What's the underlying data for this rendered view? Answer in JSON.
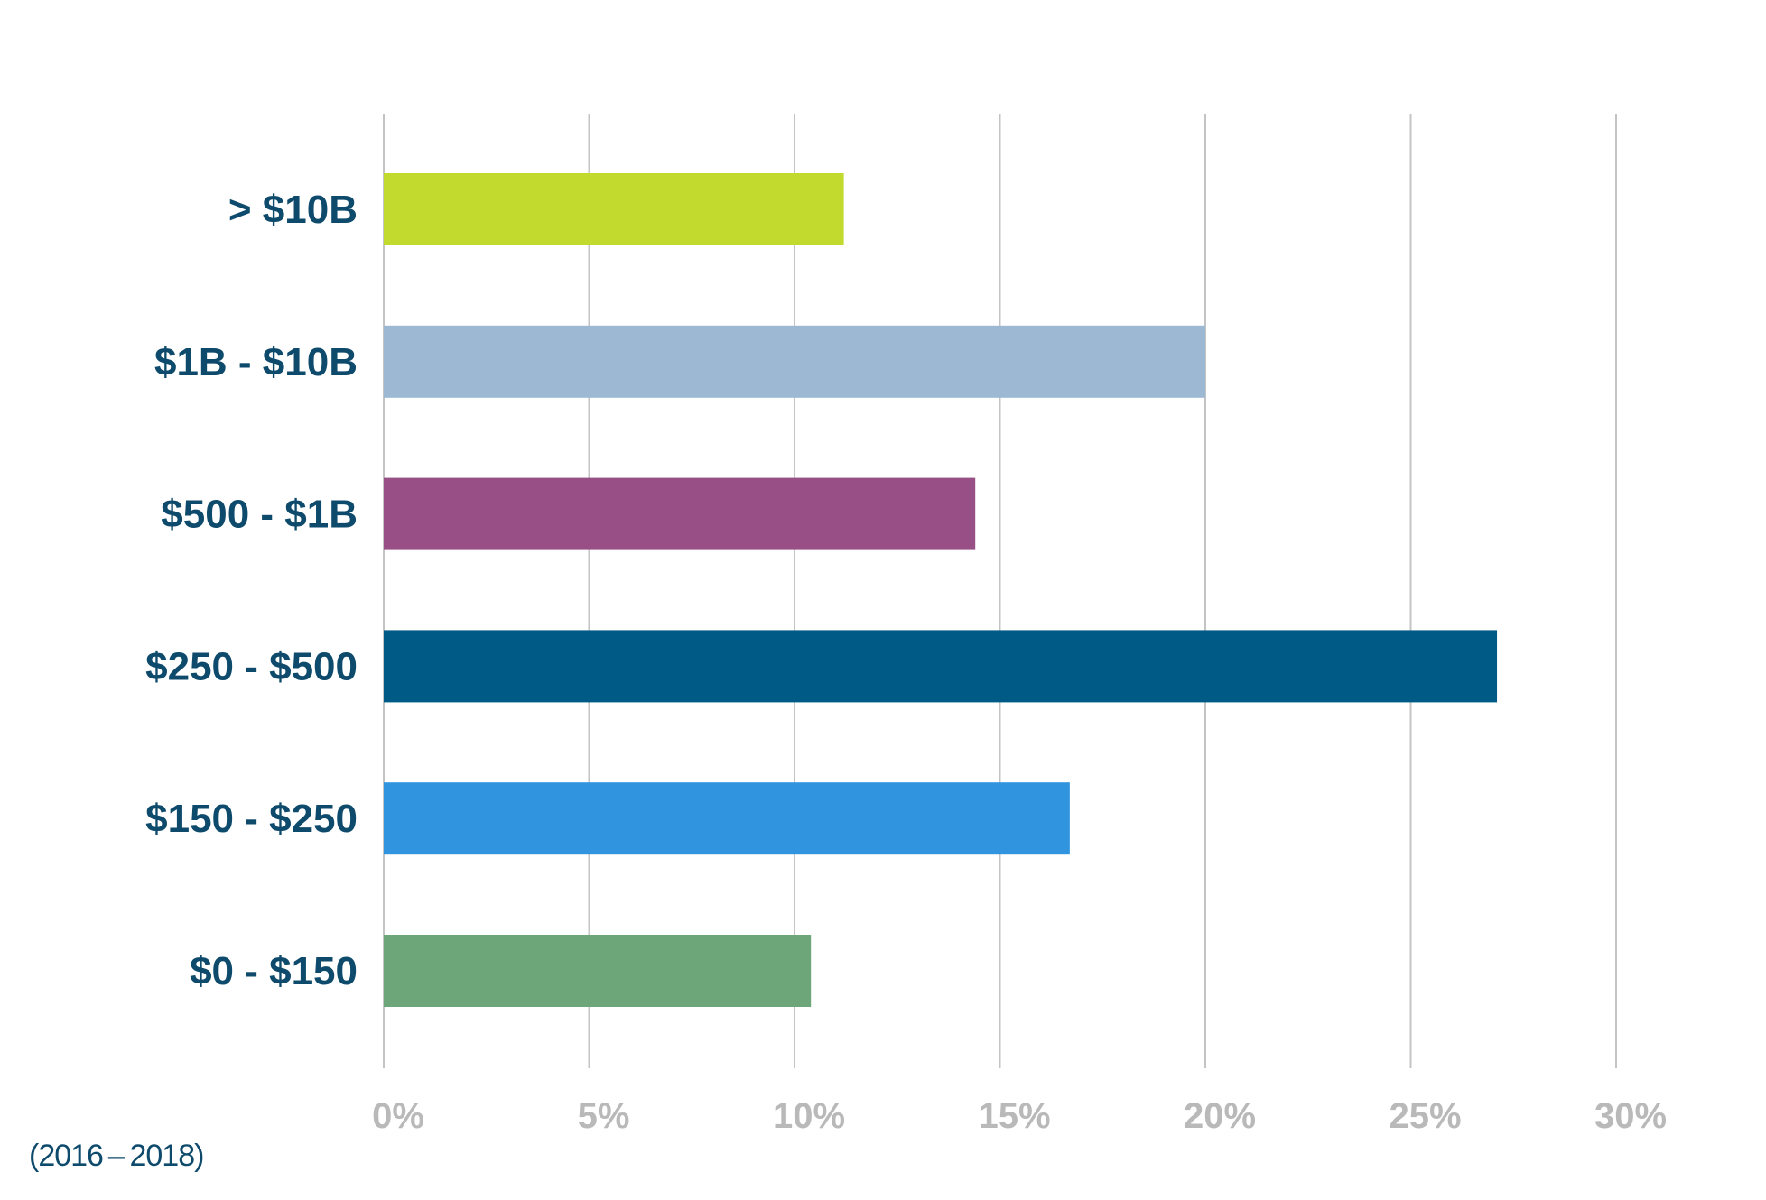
{
  "chart_data": {
    "type": "bar",
    "orientation": "horizontal",
    "categories": [
      "> $10B",
      "$1B - $10B",
      "$500 - $1B",
      "$250 - $500",
      "$150 - $250",
      "$0 - $150"
    ],
    "values": [
      11.2,
      20.0,
      14.4,
      27.1,
      16.7,
      10.4
    ],
    "bar_colors": [
      "#c2d92e",
      "#9cb8d3",
      "#974f86",
      "#005a86",
      "#3095de",
      "#6da678"
    ],
    "x_ticks": [
      "0%",
      "5%",
      "10%",
      "15%",
      "20%",
      "25%",
      "30%"
    ],
    "x_tick_values": [
      0,
      5,
      10,
      15,
      20,
      25,
      30
    ],
    "xlim": [
      0,
      30
    ],
    "grid": true,
    "xlabel": "",
    "ylabel": "",
    "title": ""
  },
  "footnote": "(2016 – 2018)",
  "colors": {
    "category_label": "#0e4a6b",
    "tick_label": "#b9b9b9",
    "gridline": "#c4c4c4"
  }
}
